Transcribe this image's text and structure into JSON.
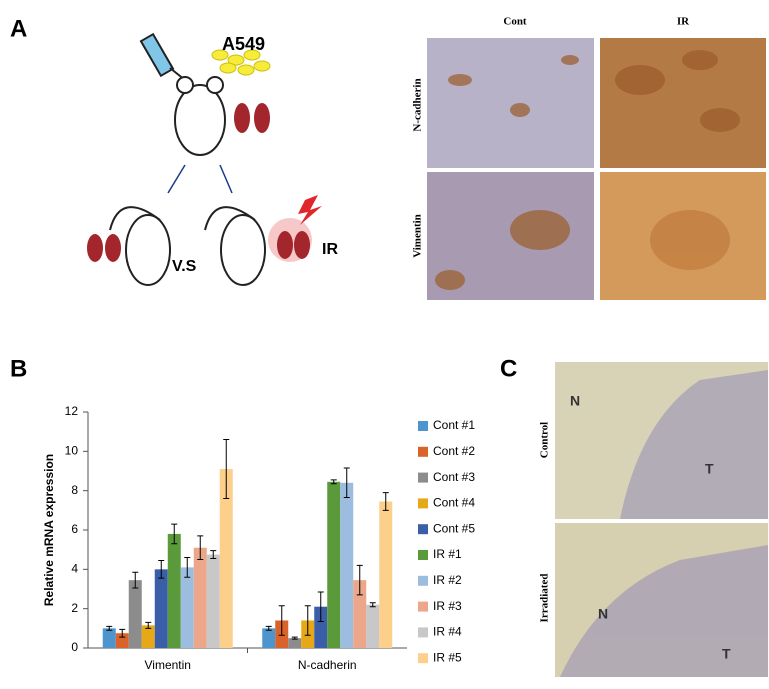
{
  "panel_labels": [
    "A",
    "B",
    "C"
  ],
  "panel_a": {
    "cell_line": "A549",
    "versus": "V.S",
    "treatment": "IR",
    "columns": [
      "Cont",
      "IR"
    ],
    "rows": [
      "N-cadherin",
      "Vimentin"
    ]
  },
  "panel_c": {
    "rows": [
      "Control",
      "Irradiated"
    ],
    "markers": [
      [
        "N",
        "T"
      ],
      [
        "N",
        "T"
      ]
    ]
  },
  "chart_data": {
    "type": "bar",
    "y_label": "Relative mRNA expression",
    "categories": [
      "Vimentin",
      "N-cadherin"
    ],
    "ylim": [
      0,
      12
    ],
    "yticks": [
      0,
      2,
      4,
      6,
      8,
      10,
      12
    ],
    "series": [
      {
        "name": "Cont #1",
        "color": "#4f95cd",
        "values": [
          1.0,
          1.0
        ],
        "errors": [
          0.1,
          0.1
        ]
      },
      {
        "name": "Cont #2",
        "color": "#d9632a",
        "values": [
          0.75,
          1.4
        ],
        "errors": [
          0.2,
          0.75
        ]
      },
      {
        "name": "Cont #3",
        "color": "#8c8c8c",
        "values": [
          3.45,
          0.5
        ],
        "errors": [
          0.4,
          0.05
        ]
      },
      {
        "name": "Cont #4",
        "color": "#e6a817",
        "values": [
          1.15,
          1.4
        ],
        "errors": [
          0.15,
          0.75
        ]
      },
      {
        "name": "Cont #5",
        "color": "#3a5fa8",
        "values": [
          4.0,
          2.1
        ],
        "errors": [
          0.45,
          0.75
        ]
      },
      {
        "name": "IR #1",
        "color": "#5a9a3a",
        "values": [
          5.8,
          8.45
        ],
        "errors": [
          0.5,
          0.1
        ]
      },
      {
        "name": "IR #2",
        "color": "#9dbde0",
        "values": [
          4.1,
          8.4
        ],
        "errors": [
          0.5,
          0.75
        ]
      },
      {
        "name": "IR #3",
        "color": "#eca689",
        "values": [
          5.1,
          3.45
        ],
        "errors": [
          0.6,
          0.75
        ]
      },
      {
        "name": "IR #4",
        "color": "#c8c8c8",
        "values": [
          4.75,
          2.2
        ],
        "errors": [
          0.2,
          0.1
        ]
      },
      {
        "name": "IR #5",
        "color": "#fcd08a",
        "values": [
          9.1,
          7.45
        ],
        "errors": [
          1.5,
          0.45
        ]
      }
    ]
  }
}
